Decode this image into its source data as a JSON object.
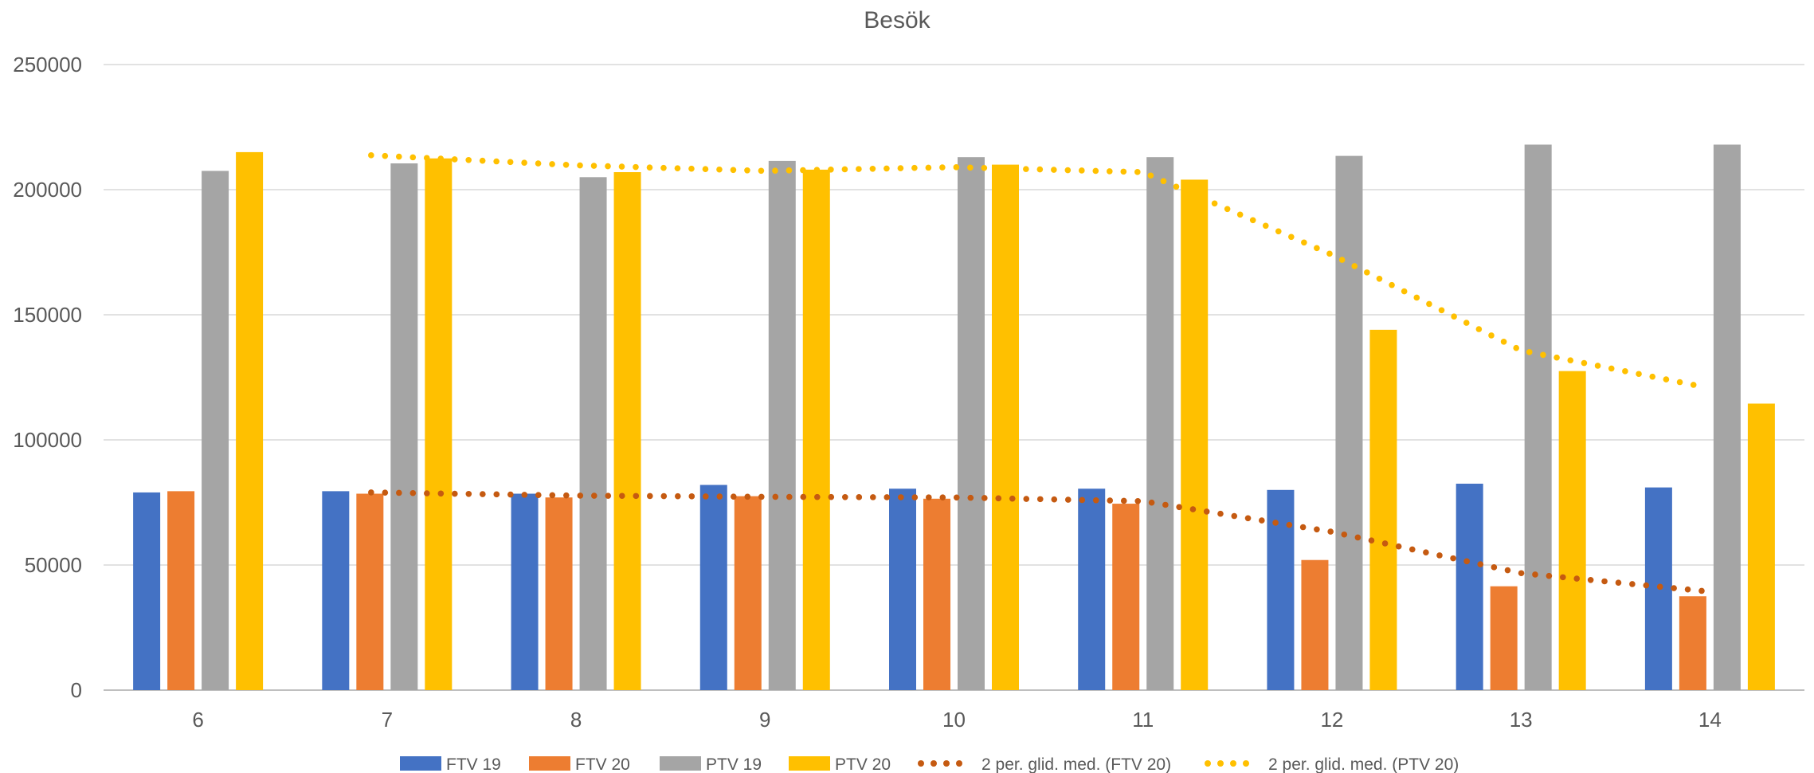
{
  "chart_data": {
    "type": "bar",
    "title": "Besök",
    "categories": [
      "6",
      "7",
      "8",
      "9",
      "10",
      "11",
      "12",
      "13",
      "14"
    ],
    "ylim": [
      0,
      250000
    ],
    "yticks": [
      "0",
      "50000",
      "100000",
      "150000",
      "200000",
      "250000"
    ],
    "grid": true,
    "legend_position": "bottom",
    "series": [
      {
        "name": "FTV 19",
        "color": "#4472C4",
        "values": [
          79000,
          79500,
          78500,
          82000,
          80500,
          80500,
          80000,
          82500,
          81000
        ]
      },
      {
        "name": "FTV 20",
        "color": "#ED7D31",
        "values": [
          79500,
          78500,
          77000,
          77500,
          76500,
          74500,
          52000,
          41500,
          37500
        ]
      },
      {
        "name": "PTV 19",
        "color": "#A5A5A5",
        "values": [
          207500,
          210500,
          205000,
          211500,
          213000,
          213000,
          213500,
          218000,
          218000
        ]
      },
      {
        "name": "PTV 20",
        "color": "#FFC000",
        "values": [
          215000,
          212500,
          207000,
          208000,
          210000,
          204000,
          144000,
          127500,
          114500
        ]
      }
    ],
    "trendlines": [
      {
        "name": "2 per. glid. med. (FTV 20)",
        "color": "#C55A11",
        "values": [
          null,
          79000,
          77750,
          77250,
          77000,
          75500,
          63250,
          46750,
          39500
        ]
      },
      {
        "name": "2 per. glid. med. (PTV 20)",
        "color": "#FFC000",
        "values": [
          null,
          213750,
          209750,
          207500,
          209000,
          207000,
          174000,
          135750,
          121000
        ]
      }
    ]
  }
}
